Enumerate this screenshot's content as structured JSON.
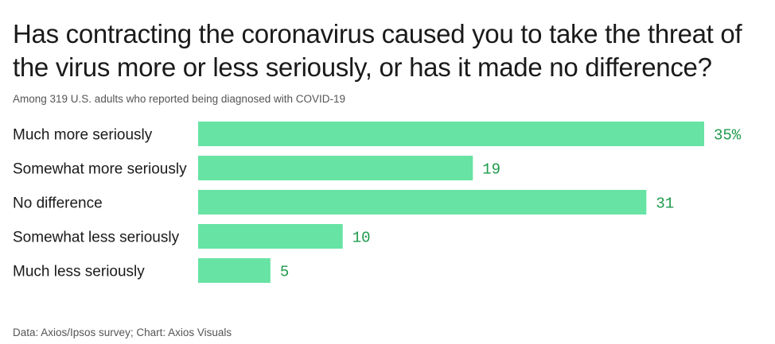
{
  "title": "Has contracting the coronavirus caused you to take the threat of the virus more or less seriously, or has it made no difference?",
  "subtitle": "Among 319 U.S. adults who reported being diagnosed with COVID-19",
  "source": "Data: Axios/Ipsos survey; Chart: Axios Visuals",
  "colors": {
    "bar": "#67e3a4",
    "value_label": "#1f9a4c"
  },
  "chart_data": {
    "type": "bar",
    "orientation": "horizontal",
    "title": "Has contracting the coronavirus caused you to take the threat of the virus more or less seriously, or has it made no difference?",
    "xlabel": "",
    "ylabel": "",
    "categories": [
      "Much more seriously",
      "Somewhat more seriously",
      "No difference",
      "Somewhat less seriously",
      "Much less seriously"
    ],
    "values": [
      35,
      19,
      31,
      10,
      5
    ],
    "value_labels": [
      "35%",
      "19",
      "31",
      "10",
      "5"
    ],
    "xlim": [
      0,
      35
    ],
    "grid": false,
    "legend": "none"
  }
}
